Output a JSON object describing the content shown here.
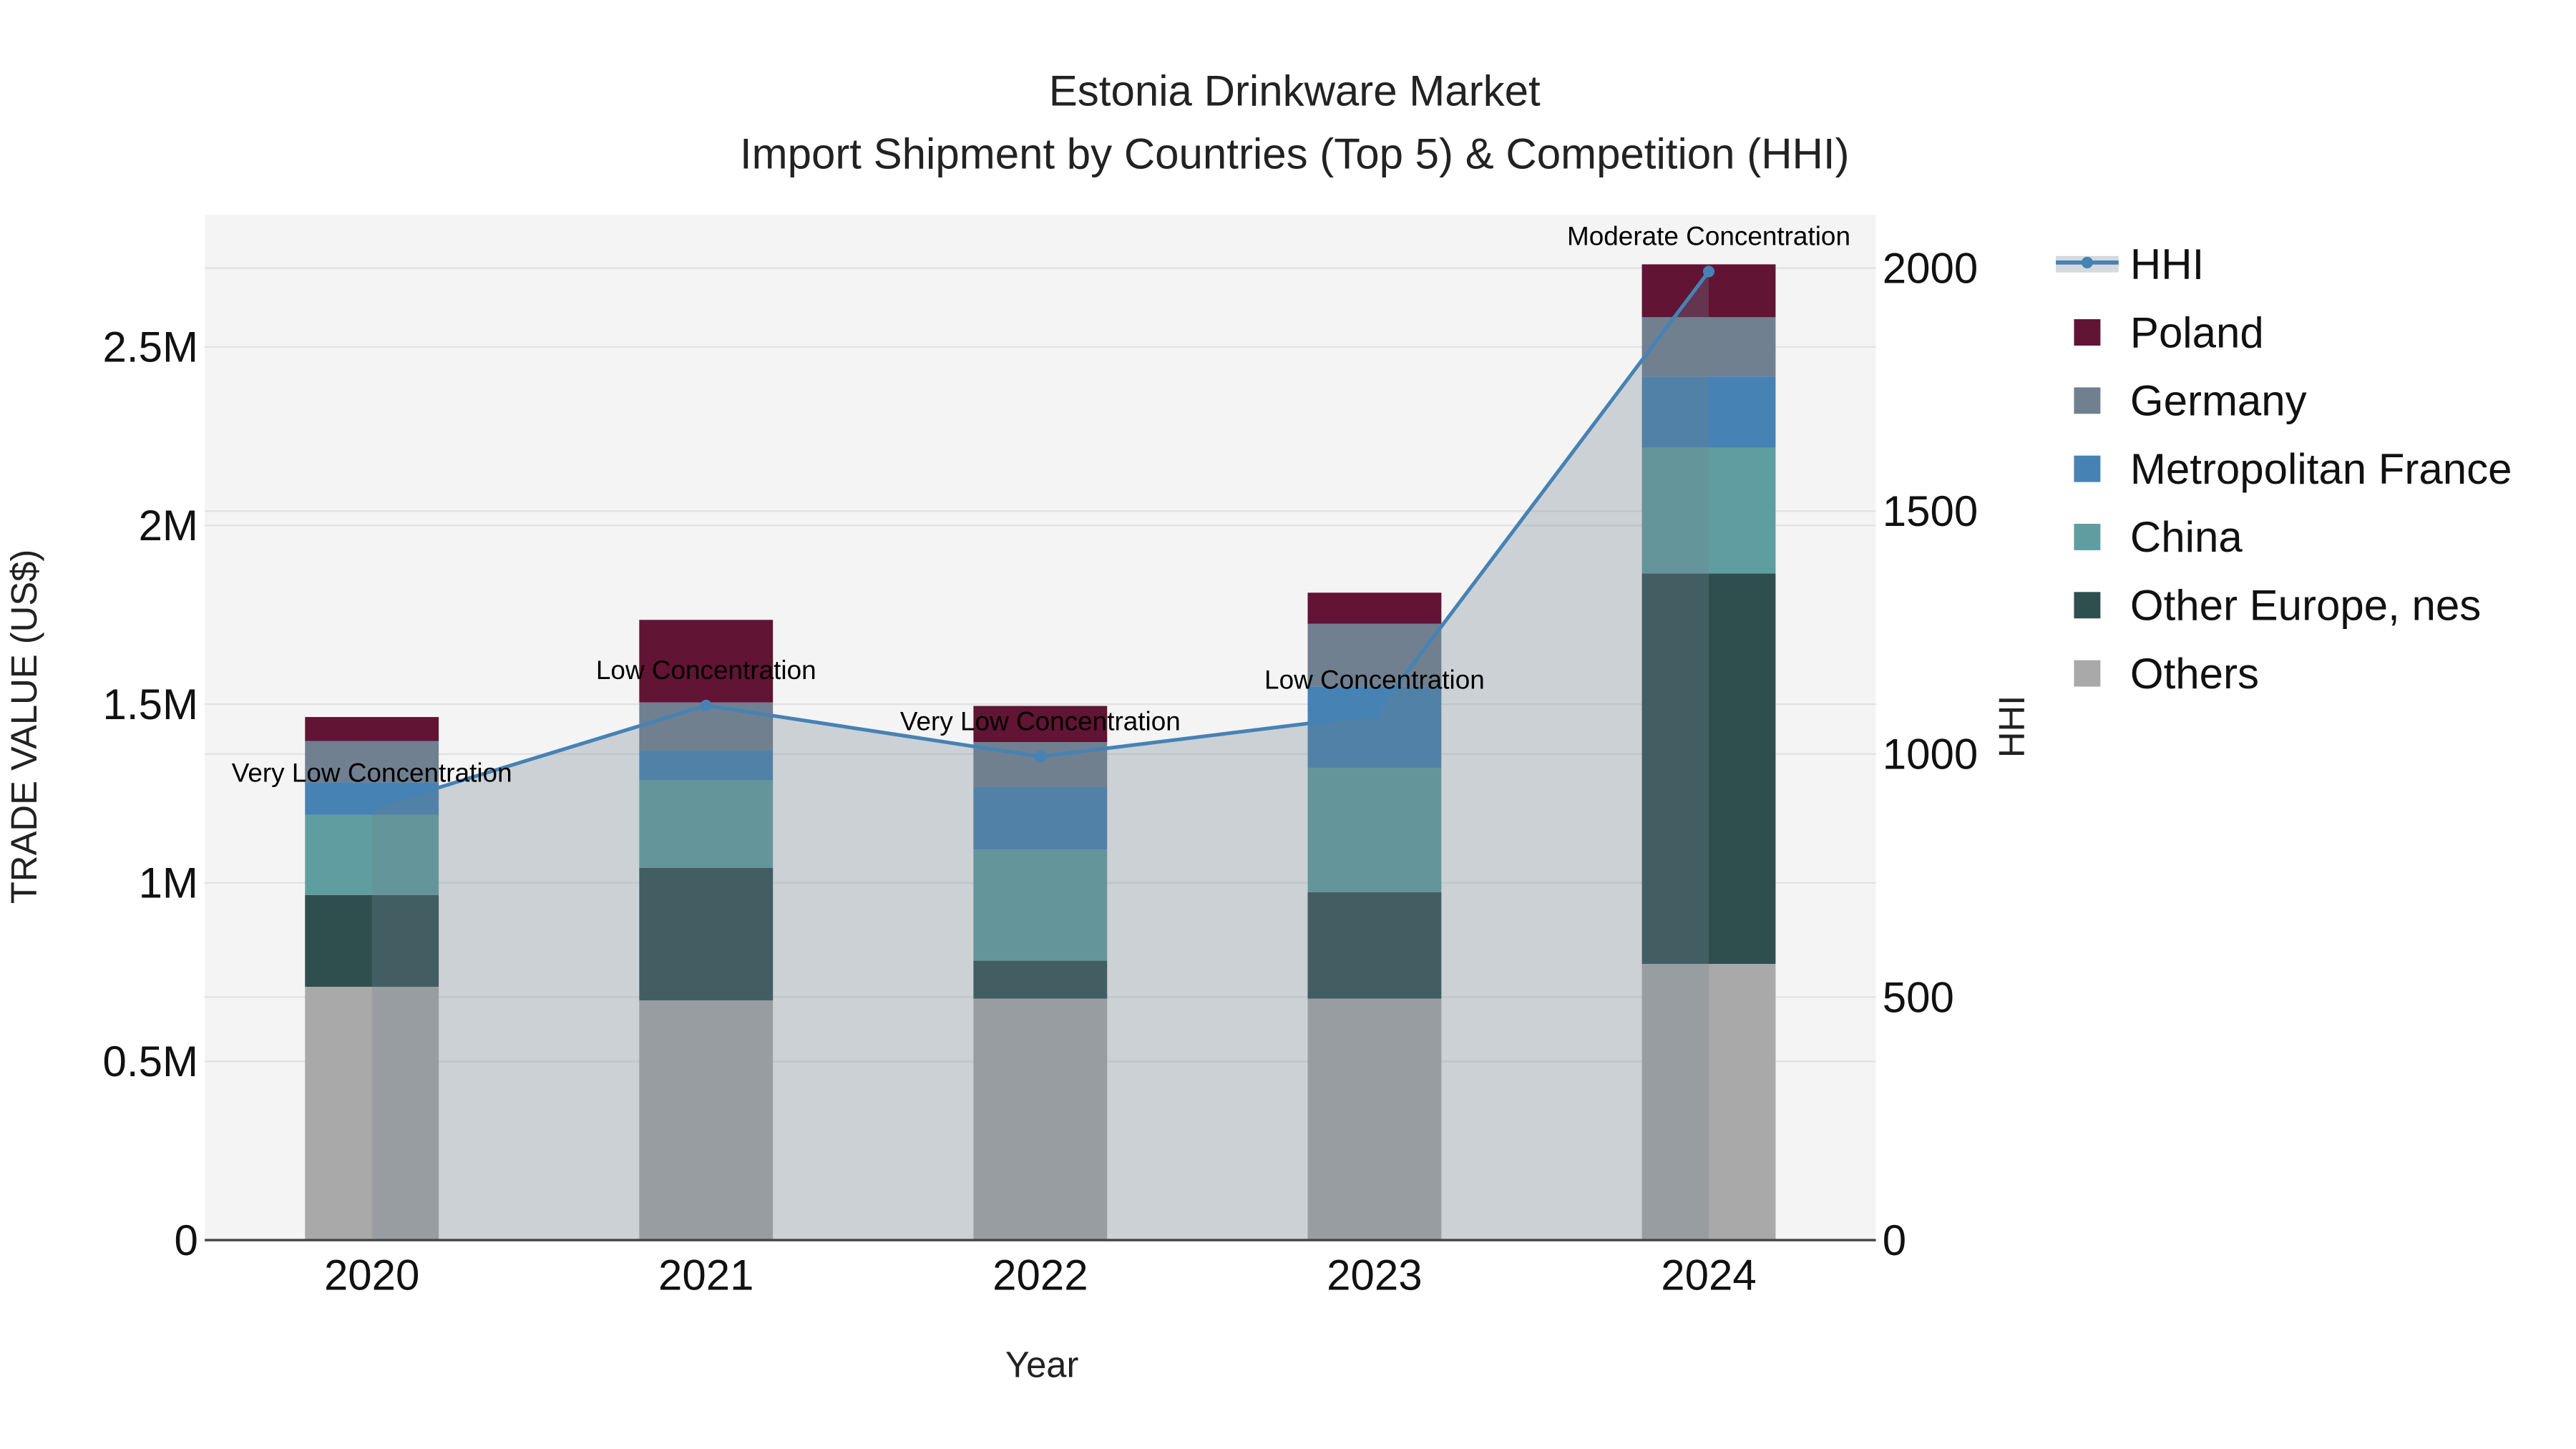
{
  "chart_data": {
    "type": "bar",
    "title": "Estonia Drinkware Market",
    "subtitle": "Import Shipment by Countries (Top 5) & Competition (HHI)",
    "xlabel": "Year",
    "ylabel": "TRADE VALUE (US$)",
    "y2label": "HHI",
    "categories": [
      "2020",
      "2021",
      "2022",
      "2023",
      "2024"
    ],
    "ylim": [
      0,
      2870000
    ],
    "y2lim": [
      0,
      2110
    ],
    "yticks": [
      {
        "v": 0,
        "label": "0"
      },
      {
        "v": 500000,
        "label": "0.5M"
      },
      {
        "v": 1000000,
        "label": "1M"
      },
      {
        "v": 1500000,
        "label": "1.5M"
      },
      {
        "v": 2000000,
        "label": "2M"
      },
      {
        "v": 2500000,
        "label": "2.5M"
      }
    ],
    "y2ticks": [
      {
        "v": 0,
        "label": "0"
      },
      {
        "v": 500,
        "label": "500"
      },
      {
        "v": 1000,
        "label": "1000"
      },
      {
        "v": 1500,
        "label": "1500"
      },
      {
        "v": 2000,
        "label": "2000"
      }
    ],
    "series": [
      {
        "name": "Others",
        "color": "#A9A9A9",
        "values": [
          709000,
          671000,
          676000,
          676000,
          773000
        ]
      },
      {
        "name": "Other Europe, nes",
        "color": "#2F4F4F",
        "values": [
          257000,
          371000,
          106000,
          298000,
          1093000
        ]
      },
      {
        "name": "China",
        "color": "#5F9EA0",
        "values": [
          224000,
          245000,
          311000,
          348000,
          352000
        ]
      },
      {
        "name": "Metropolitan France",
        "color": "#4682B4",
        "values": [
          91000,
          83000,
          176000,
          227000,
          199000
        ]
      },
      {
        "name": "Germany",
        "color": "#708090",
        "values": [
          116000,
          135000,
          125000,
          176000,
          166000
        ]
      },
      {
        "name": "Poland",
        "color": "#611434",
        "values": [
          67000,
          231000,
          101000,
          87000,
          148000
        ]
      }
    ],
    "hhi": {
      "name": "HHI",
      "color": "#4682B4",
      "fill": "#708090",
      "values": [
        889,
        1100,
        995,
        1080,
        1993
      ],
      "annotations": [
        "Very Low Concentration",
        "Low Concentration",
        "Very Low Concentration",
        "Low Concentration",
        "Moderate Concentration"
      ]
    },
    "legend": [
      "HHI",
      "Poland",
      "Germany",
      "Metropolitan France",
      "China",
      "Other Europe, nes",
      "Others"
    ],
    "legend_position": "right",
    "grid": true
  }
}
